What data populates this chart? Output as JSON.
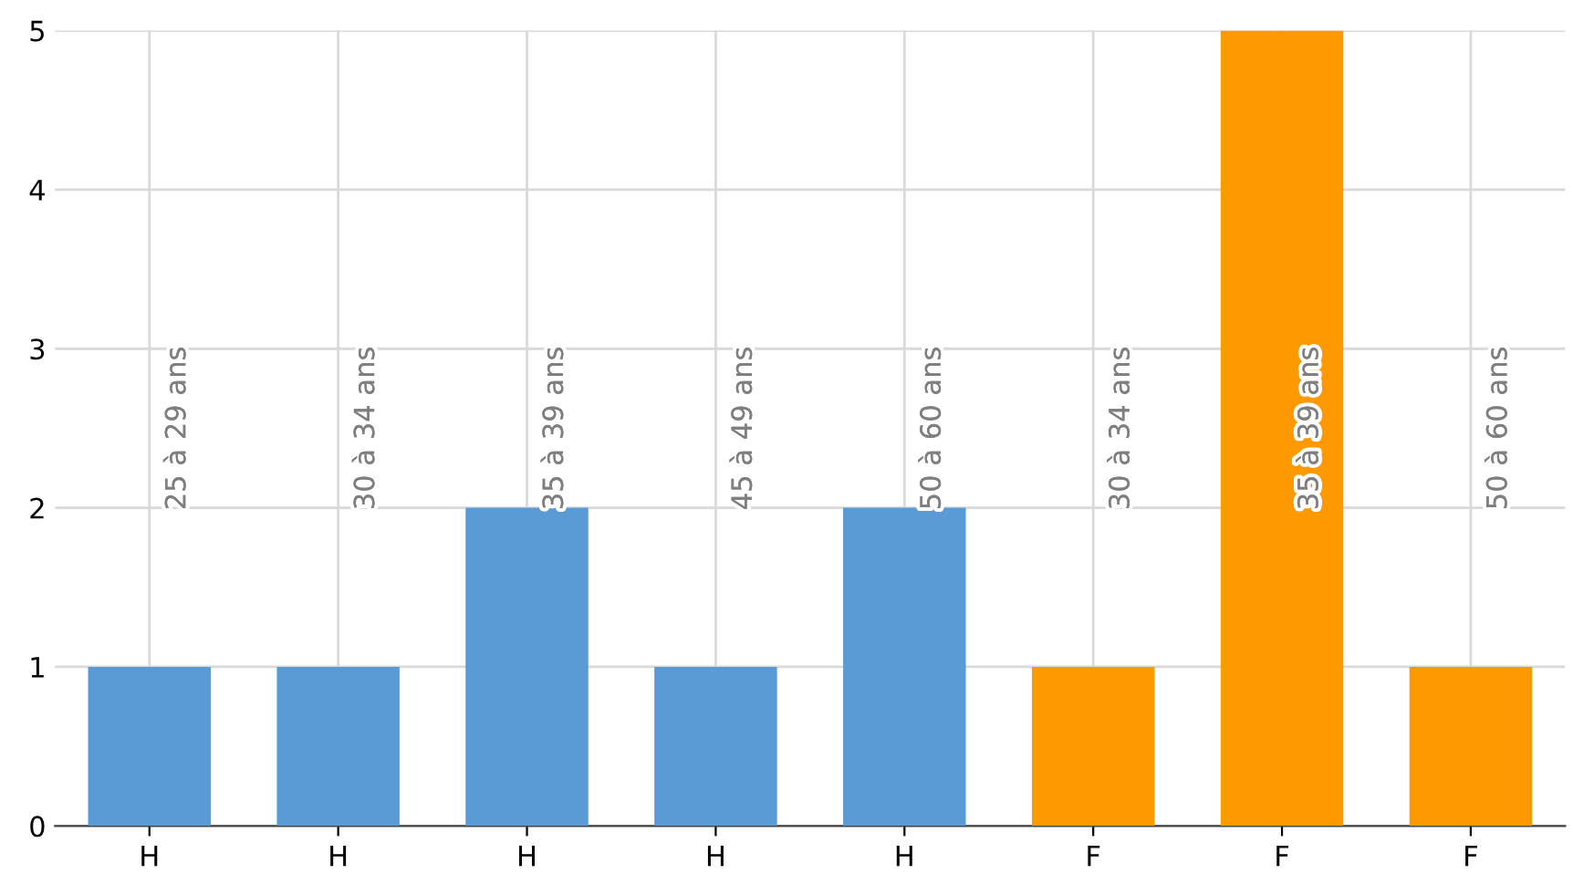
{
  "chart_data": {
    "type": "bar",
    "categories": [
      "H",
      "H",
      "H",
      "H",
      "H",
      "F",
      "F",
      "F"
    ],
    "values": [
      1,
      1,
      2,
      1,
      2,
      1,
      5,
      1
    ],
    "colors": [
      "#5b9bd5",
      "#5b9bd5",
      "#5b9bd5",
      "#5b9bd5",
      "#5b9bd5",
      "#ff9900",
      "#ff9900",
      "#ff9900"
    ],
    "annotations": [
      "25 à 29 ans",
      "30 à 34 ans",
      "35 à 39 ans",
      "45 à 49 ans",
      "50 à 60 ans",
      "30 à 34 ans",
      "35 à 39 ans",
      "50 à 60 ans"
    ],
    "ylim": [
      0,
      5
    ],
    "yticks": [
      0,
      1,
      2,
      3,
      4,
      5
    ],
    "grid": true
  }
}
